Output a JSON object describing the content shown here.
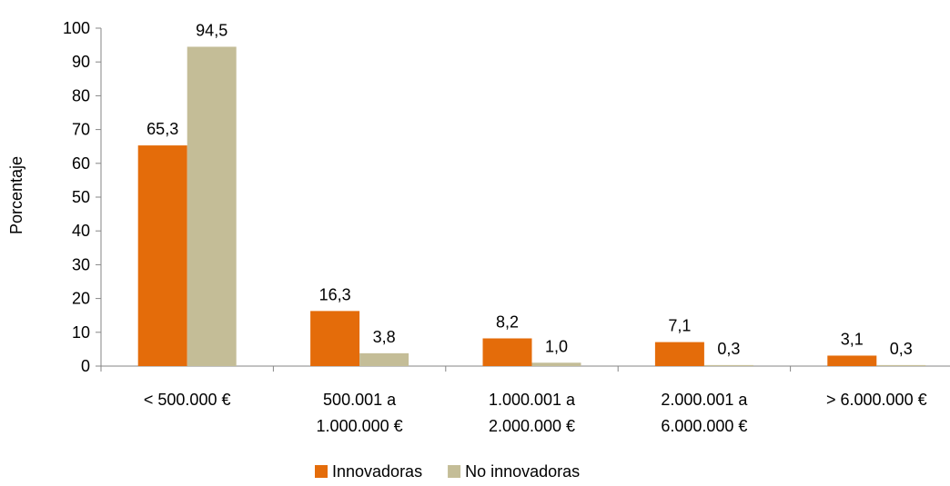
{
  "chart_data": {
    "type": "bar",
    "categories": [
      [
        "< 500.000 €"
      ],
      [
        "500.001 a",
        "1.000.000 €"
      ],
      [
        "1.000.001 a",
        "2.000.000 €"
      ],
      [
        "2.000.001 a",
        "6.000.000 €"
      ],
      [
        "> 6.000.000 €"
      ]
    ],
    "series": [
      {
        "name": "Innovadoras",
        "color": "#E46C0A",
        "values": [
          65.3,
          16.3,
          8.2,
          7.1,
          3.1
        ],
        "labels": [
          "65,3",
          "16,3",
          "8,2",
          "7,1",
          "3,1"
        ]
      },
      {
        "name": "No innovadoras",
        "color": "#C4BD97",
        "values": [
          94.5,
          3.8,
          1.0,
          0.3,
          0.3
        ],
        "labels": [
          "94,5",
          "3,8",
          "1,0",
          "0,3",
          "0,3"
        ]
      }
    ],
    "ylabel": "Porcentaje",
    "ylim": [
      0,
      100
    ],
    "yticks": [
      0,
      10,
      20,
      30,
      40,
      50,
      60,
      70,
      80,
      90,
      100
    ],
    "grid": false,
    "legend_position": "bottom"
  }
}
